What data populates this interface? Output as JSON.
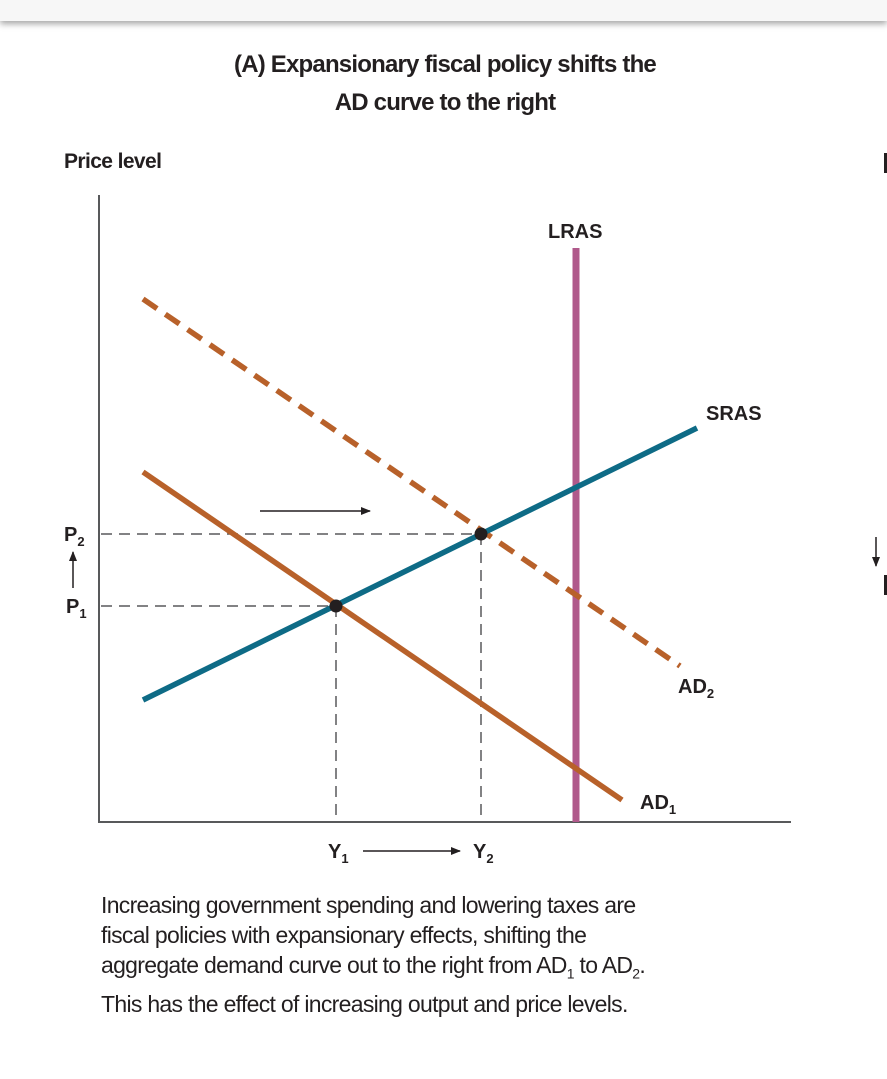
{
  "title_line1": "(A) Expansionary fiscal policy shifts the",
  "title_line2": "AD curve to the right",
  "y_axis_label": "Price level",
  "curves": {
    "lras": "LRAS",
    "sras": "SRAS",
    "ad1": {
      "base": "AD",
      "sub": "1"
    },
    "ad2": {
      "base": "AD",
      "sub": "2"
    }
  },
  "price_labels": {
    "p1": {
      "base": "P",
      "sub": "1"
    },
    "p2": {
      "base": "P",
      "sub": "2"
    }
  },
  "output_labels": {
    "y1": {
      "base": "Y",
      "sub": "1"
    },
    "y2": {
      "base": "Y",
      "sub": "2"
    }
  },
  "colors": {
    "ad": "#b8612a",
    "sras": "#0e6b86",
    "lras": "#b0598b",
    "axis": "#58595b"
  },
  "caption": {
    "line1": "Increasing government spending and lowering taxes are",
    "line2": "fiscal policies with expansionary effects, shifting the",
    "line3_a": "aggregate demand curve out to the right from AD",
    "line3_sub1": "1",
    "line3_b": " to AD",
    "line3_sub2": "2",
    "line3_c": ".",
    "line4": "This has the effect of increasing output and price levels."
  }
}
